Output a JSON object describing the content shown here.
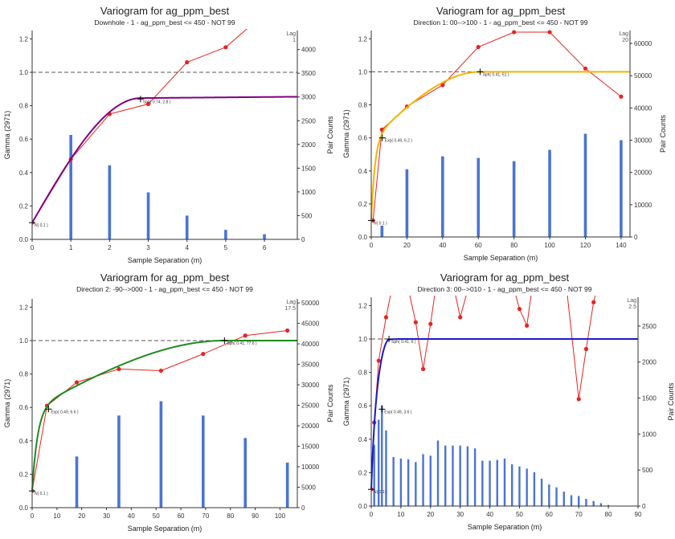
{
  "colors": {
    "bars": "#4a74d4",
    "experimental": "#e8231f",
    "sill": "#555555",
    "panel1_model": "#800080",
    "panel2_model": "#f4b400",
    "panel3_model": "#1f8a1f",
    "panel4_model": "#1a1acc"
  },
  "chart_data": [
    {
      "type": "line",
      "title": "Variogram for ag_ppm_best",
      "subtitle": "Downhole - 1 - ag_ppm_best <= 450 - NOT 99",
      "xlabel": "Sample Separation (m)",
      "ylabel": "Gamma (2971)",
      "y2label": "Pair Counts",
      "lag_label": "Lag",
      "lag_value": "1",
      "xlim": [
        0,
        6.85
      ],
      "xticks": [
        0,
        1,
        2,
        3,
        4,
        5,
        6
      ],
      "ylim": [
        0,
        1.25
      ],
      "yticks": [
        0,
        0.2,
        0.4,
        0.6,
        0.8,
        1.0,
        1.2
      ],
      "y2lim": [
        0,
        4400
      ],
      "y2ticks": [
        0,
        500,
        1000,
        1500,
        2000,
        2500,
        3000,
        3500,
        4000
      ],
      "sill": 1.0,
      "bars": {
        "x": [
          1,
          2,
          3,
          4,
          5,
          6
        ],
        "values": [
          2200,
          1560,
          990,
          500,
          200,
          110
        ]
      },
      "experimental": {
        "x": [
          0,
          1,
          2,
          3,
          4,
          5,
          6
        ],
        "y": [
          0.1,
          0.48,
          0.75,
          0.81,
          1.06,
          1.15,
          1.35
        ]
      },
      "model": {
        "nugget": 0.1,
        "structures": [
          {
            "type": "sph",
            "sill": 0.74,
            "range": 2.8
          }
        ],
        "trend_slope": 0.002
      },
      "markers": [
        {
          "label": "N( 0.1 )",
          "x": 0,
          "y": 0.1
        },
        {
          "label": "Sph( 0.74, 2.8 )",
          "x": 2.8,
          "y": 0.84
        }
      ]
    },
    {
      "type": "line",
      "title": "Variogram for ag_ppm_best",
      "subtitle": "Direction 1: 00-->100 - 1 - ag_ppm_best <= 450 - NOT 99",
      "xlabel": "Sample Separation (m)",
      "ylabel": "Gamma (2971)",
      "y2label": "Pair Counts",
      "lag_label": "Lag",
      "lag_value": "20",
      "xlim": [
        0,
        145
      ],
      "xticks": [
        0,
        20,
        40,
        60,
        80,
        100,
        120,
        140
      ],
      "ylim": [
        0,
        1.25
      ],
      "yticks": [
        0,
        0.2,
        0.4,
        0.6,
        0.8,
        1.0,
        1.2
      ],
      "y2lim": [
        0,
        64000
      ],
      "y2ticks": [
        0,
        10000,
        20000,
        30000,
        40000,
        50000,
        60000
      ],
      "sill": 1.0,
      "bars": {
        "x": [
          6,
          20,
          40,
          60,
          80,
          100,
          120,
          140
        ],
        "values": [
          3500,
          21000,
          25000,
          24500,
          23500,
          27000,
          32000,
          30000
        ]
      },
      "experimental": {
        "x": [
          1,
          6,
          20,
          40,
          60,
          80,
          100,
          120,
          140
        ],
        "y": [
          0.1,
          0.65,
          0.79,
          0.92,
          1.15,
          1.24,
          1.24,
          1.02,
          0.85
        ]
      },
      "model": {
        "nugget": 0.1,
        "structures": [
          {
            "type": "exp",
            "sill": 0.49,
            "range": 6.2
          },
          {
            "type": "sph",
            "sill": 0.41,
            "range": 61
          }
        ],
        "trend_slope": 0
      },
      "markers": [
        {
          "label": "N( 0.1 )",
          "x": 0,
          "y": 0.1
        },
        {
          "label": "Exp( 0.49, 6.2 )",
          "x": 6.2,
          "y": 0.6
        },
        {
          "label": "Sph( 0.41, 61 )",
          "x": 61,
          "y": 1.0
        }
      ]
    },
    {
      "type": "line",
      "title": "Variogram for ag_ppm_best",
      "subtitle": "Direction 2: -90-->000 - 1 - ag_ppm_best <= 450 - NOT 99",
      "xlabel": "Sample Separation (m)",
      "ylabel": "Gamma (2971)",
      "y2label": "Pair Counts",
      "lag_label": "Lag",
      "lag_value": "17.5",
      "xlim": [
        0,
        107
      ],
      "xticks": [
        0,
        10,
        20,
        30,
        40,
        50,
        60,
        70,
        80,
        90,
        100
      ],
      "ylim": [
        0,
        1.25
      ],
      "yticks": [
        0,
        0.2,
        0.4,
        0.6,
        0.8,
        1.0,
        1.2
      ],
      "y2lim": [
        0,
        51000
      ],
      "y2ticks": [
        0,
        5000,
        10000,
        15000,
        20000,
        25000,
        30000,
        35000,
        40000,
        45000,
        50000
      ],
      "sill": 1.0,
      "bars": {
        "x": [
          18,
          35,
          52,
          69,
          86,
          103
        ],
        "values": [
          12500,
          22500,
          26000,
          22500,
          17000,
          11000
        ]
      },
      "experimental": {
        "x": [
          0,
          6,
          18,
          35,
          52,
          69,
          86,
          103
        ],
        "y": [
          0.1,
          0.61,
          0.75,
          0.83,
          0.82,
          0.92,
          1.03,
          1.06
        ]
      },
      "model": {
        "nugget": 0.1,
        "structures": [
          {
            "type": "exp",
            "sill": 0.49,
            "range": 6.6
          },
          {
            "type": "sph",
            "sill": 0.41,
            "range": 77.6
          }
        ],
        "trend_slope": 0
      },
      "markers": [
        {
          "label": "N( 0.1 )",
          "x": 0,
          "y": 0.1
        },
        {
          "label": "Exp( 0.49, 6.6 )",
          "x": 6.6,
          "y": 0.59
        },
        {
          "label": "Sph( 0.41, 77.6 )",
          "x": 77.6,
          "y": 1.0
        }
      ]
    },
    {
      "type": "line",
      "title": "Variogram for ag_ppm_best",
      "subtitle": "Direction 3: 00-->010 - 1 - ag_ppm_best <= 450 - NOT 99",
      "xlabel": "Sample Separation (m)",
      "ylabel": "Gamma (2971)",
      "y2label": "Pair Counts",
      "lag_label": "Lag",
      "lag_value": "2.5",
      "xlim": [
        0,
        90
      ],
      "xticks": [
        0,
        10,
        20,
        30,
        40,
        50,
        60,
        70,
        80,
        90
      ],
      "ylim": [
        0,
        1.25
      ],
      "yticks": [
        0,
        0.2,
        0.4,
        0.6,
        0.8,
        1.0,
        1.2
      ],
      "y2lim": [
        0,
        2900
      ],
      "y2ticks": [
        0,
        500,
        1000,
        1500,
        2000,
        2500
      ],
      "sill": 1.0,
      "bars": {
        "x": [
          1,
          2.5,
          3.6,
          5,
          7.5,
          10,
          12.5,
          15,
          17.5,
          20,
          22.5,
          25,
          27.5,
          30,
          32.5,
          35,
          37.5,
          40,
          42.5,
          45,
          47.5,
          50,
          52.5,
          55,
          57.5,
          60,
          62.5,
          65,
          67.5,
          70,
          72.5,
          75,
          77.5,
          80
        ],
        "values": [
          850,
          1200,
          1400,
          1050,
          680,
          660,
          650,
          610,
          720,
          700,
          910,
          840,
          840,
          840,
          830,
          800,
          630,
          630,
          640,
          660,
          580,
          550,
          520,
          470,
          380,
          300,
          260,
          200,
          150,
          140,
          100,
          70,
          40,
          15
        ]
      },
      "experimental": {
        "x": [
          0,
          1,
          2.5,
          5,
          7.5,
          10,
          12.5,
          15,
          17.5,
          20,
          22.5,
          25,
          30,
          35,
          40,
          45,
          50,
          52.5,
          55,
          60,
          65,
          70,
          72.5,
          75,
          77.5,
          80
        ],
        "y": [
          0.1,
          0.5,
          0.87,
          1.13,
          1.35,
          1.45,
          1.3,
          1.1,
          0.82,
          1.09,
          1.4,
          1.55,
          1.13,
          1.45,
          1.5,
          1.5,
          1.18,
          1.08,
          1.4,
          1.55,
          1.45,
          0.64,
          0.94,
          1.22,
          1.4,
          1.55
        ]
      },
      "model": {
        "nugget": 0.1,
        "structures": [
          {
            "type": "exp",
            "sill": 0.49,
            "range": 3.6
          },
          {
            "type": "sph",
            "sill": 0.41,
            "range": 6
          }
        ],
        "trend_slope": 0
      },
      "markers": [
        {
          "label": "N( 0.1 )",
          "x": 0,
          "y": 0.1
        },
        {
          "label": "Exp( 0.49, 3.6 )",
          "x": 3.6,
          "y": 0.58
        },
        {
          "label": "Sph( 0.41, 6 )",
          "x": 6,
          "y": 1.0
        }
      ]
    }
  ]
}
